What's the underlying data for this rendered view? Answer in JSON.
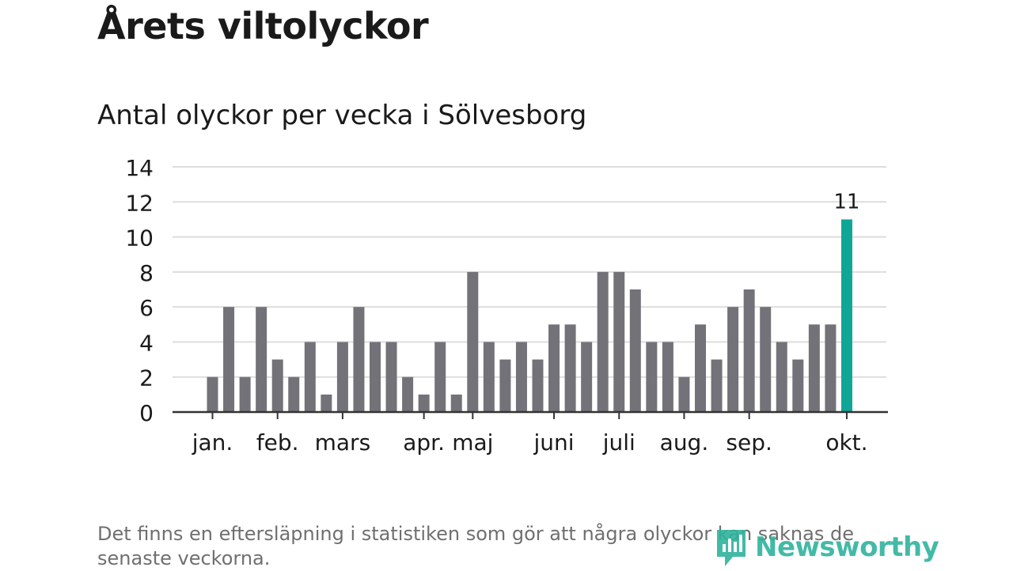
{
  "title": "Årets viltolyckor",
  "subtitle": "Antal olyckor per vecka i Sölvesborg",
  "footnote": "Det finns en eftersläpning i statistiken som gör att några olyckor kan saknas de senaste veckorna.",
  "logo": {
    "text": "Newsworthy",
    "icon": "newsworthy-logo-icon"
  },
  "colors": {
    "bar": "#737279",
    "highlight": "#0fa696",
    "grid": "#dddddd",
    "axis": "#333333",
    "text": "#1a1a1a"
  },
  "chart_data": {
    "type": "bar",
    "x_unit": "week",
    "x": [
      2,
      3,
      4,
      5,
      6,
      7,
      8,
      9,
      10,
      11,
      12,
      13,
      14,
      15,
      16,
      17,
      18,
      19,
      20,
      21,
      22,
      23,
      24,
      25,
      26,
      27,
      28,
      29,
      30,
      31,
      32,
      33,
      34,
      35,
      36,
      37,
      38,
      39,
      40,
      41
    ],
    "values": [
      2,
      6,
      2,
      6,
      3,
      2,
      4,
      1,
      4,
      6,
      4,
      4,
      2,
      1,
      4,
      1,
      8,
      4,
      3,
      4,
      3,
      5,
      5,
      4,
      8,
      8,
      7,
      4,
      4,
      2,
      5,
      3,
      6,
      7,
      6,
      4,
      3,
      5,
      5,
      11
    ],
    "ylim": [
      0,
      14
    ],
    "yticks": [
      0,
      2,
      4,
      6,
      8,
      10,
      12,
      14
    ],
    "month_labels": [
      {
        "label": "jan.",
        "week": 2
      },
      {
        "label": "feb.",
        "week": 6
      },
      {
        "label": "mars",
        "week": 10
      },
      {
        "label": "apr.",
        "week": 15
      },
      {
        "label": "maj",
        "week": 18
      },
      {
        "label": "juni",
        "week": 23
      },
      {
        "label": "juli",
        "week": 27
      },
      {
        "label": "aug.",
        "week": 31
      },
      {
        "label": "sep.",
        "week": 35
      },
      {
        "label": "okt.",
        "week": 41
      }
    ],
    "highlight_index": 39,
    "highlight_label": "11",
    "grid": true,
    "legend": "none"
  }
}
